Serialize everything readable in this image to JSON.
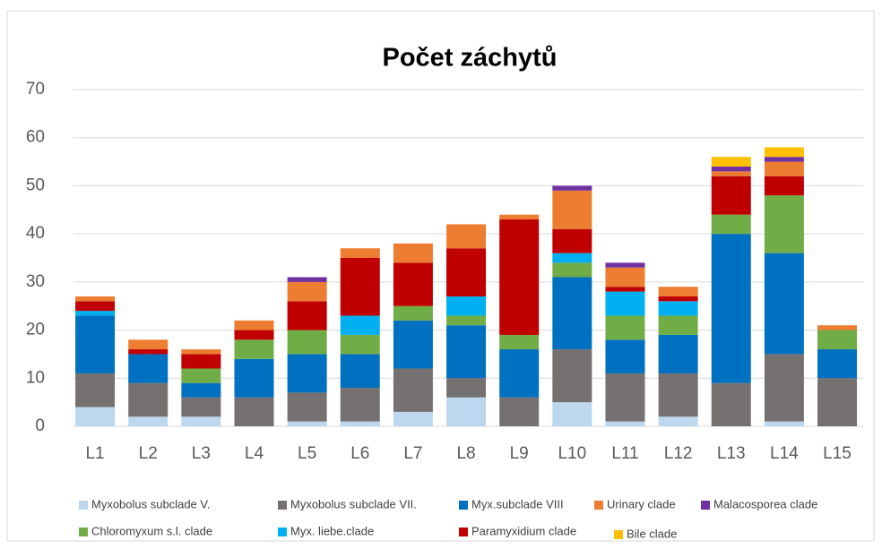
{
  "chart_data": {
    "type": "stacked_bar",
    "title": "Počet záchytů",
    "categories": [
      "L1",
      "L2",
      "L3",
      "L4",
      "L5",
      "L6",
      "L7",
      "L8",
      "L9",
      "L10",
      "L11",
      "L12",
      "L13",
      "L14",
      "L15"
    ],
    "series": [
      {
        "name": "Myxobolus subclade V.",
        "color": "#bdd7ee",
        "values": [
          4,
          2,
          2,
          0,
          1,
          1,
          3,
          6,
          0,
          5,
          1,
          2,
          0,
          1,
          0
        ]
      },
      {
        "name": "Myxobolus subclade VII.",
        "color": "#767171",
        "values": [
          7,
          7,
          4,
          6,
          6,
          7,
          9,
          4,
          6,
          11,
          10,
          9,
          9,
          14,
          10
        ]
      },
      {
        "name": "Myx.subclade VIII",
        "color": "#0070c0",
        "values": [
          12,
          6,
          3,
          8,
          8,
          7,
          10,
          11,
          10,
          15,
          7,
          8,
          31,
          21,
          6
        ]
      },
      {
        "name": "Chloromyxum s.l. clade",
        "color": "#70ad47",
        "values": [
          0,
          0,
          3,
          4,
          5,
          4,
          3,
          2,
          3,
          3,
          5,
          4,
          4,
          12,
          4
        ]
      },
      {
        "name": "Myx. liebe.clade",
        "color": "#00b0f0",
        "values": [
          1,
          0,
          0,
          0,
          0,
          4,
          0,
          4,
          0,
          2,
          5,
          3,
          0,
          0,
          0
        ]
      },
      {
        "name": "Paramyxidium clade",
        "color": "#c00000",
        "values": [
          2,
          1,
          3,
          2,
          6,
          12,
          9,
          10,
          24,
          5,
          1,
          1,
          8,
          4,
          0
        ]
      },
      {
        "name": "Urinary clade",
        "color": "#ed7d31",
        "values": [
          1,
          2,
          1,
          2,
          4,
          2,
          4,
          5,
          1,
          8,
          4,
          2,
          1,
          3,
          1
        ]
      },
      {
        "name": "Malacosporea clade",
        "color": "#7030a0",
        "values": [
          0,
          0,
          0,
          0,
          1,
          0,
          0,
          0,
          0,
          1,
          1,
          0,
          1,
          1,
          0
        ]
      },
      {
        "name": "Bile clade",
        "color": "#ffc000",
        "values": [
          0,
          0,
          0,
          0,
          0,
          0,
          0,
          0,
          0,
          0,
          0,
          0,
          2,
          2,
          0
        ]
      }
    ],
    "ylim": [
      0,
      70
    ],
    "yticks": [
      0,
      10,
      20,
      30,
      40,
      50,
      60,
      70
    ],
    "grid": true,
    "legend": "bottom"
  }
}
